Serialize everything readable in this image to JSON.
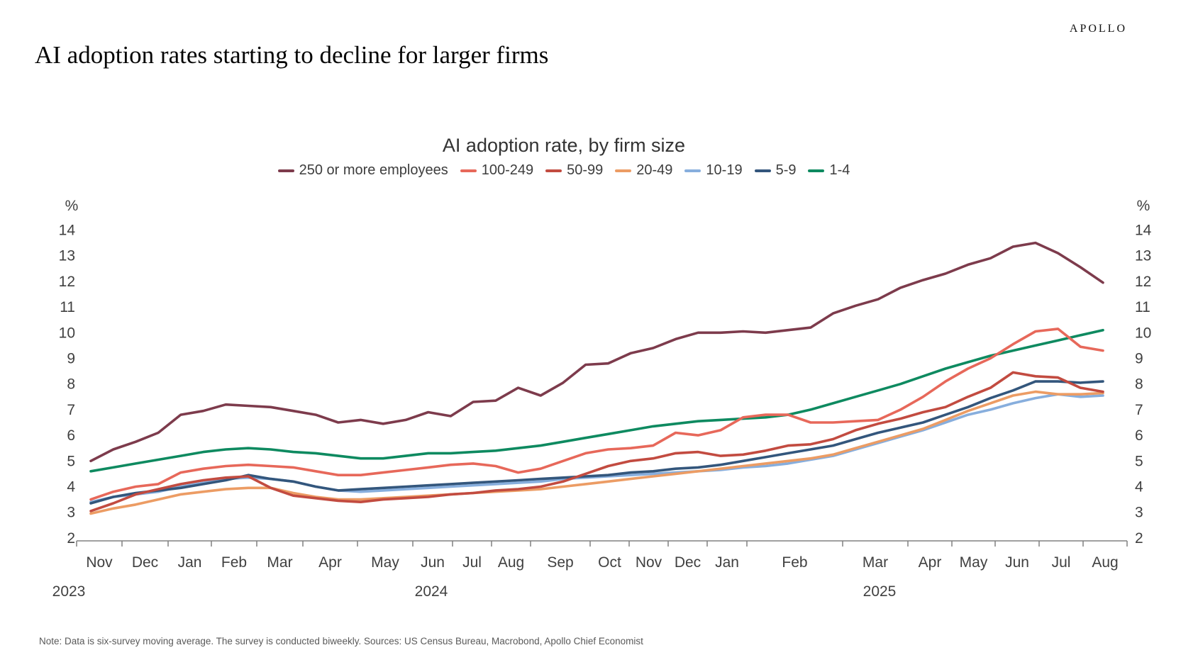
{
  "header": {
    "title": "AI adoption rates starting to decline for larger firms",
    "logo": "APOLLO"
  },
  "footer": {
    "note": "Note: Data is six-survey moving average. The survey is conducted biweekly. Sources: US Census Bureau, Macrobond, Apollo Chief Economist"
  },
  "chart_data": {
    "type": "line",
    "title": "AI adoption rate, by firm size",
    "y_unit_left": "%",
    "y_unit_right": "%",
    "ylim": [
      2,
      14
    ],
    "yticks": [
      14,
      13,
      12,
      11,
      10,
      9,
      8,
      7,
      6,
      5,
      4,
      3,
      2
    ],
    "grid": false,
    "legend_position": "top-center",
    "x_tick_labels": [
      "Nov",
      "Dec",
      "Jan",
      "Feb",
      "Mar",
      "Apr",
      "May",
      "Jun",
      "Jul",
      "Aug",
      "Sep",
      "Oct",
      "Nov",
      "Dec",
      "Jan",
      "Feb",
      "Mar",
      "Apr",
      "May",
      "Jun",
      "Jul",
      "Aug"
    ],
    "year_labels": [
      "2023",
      "2024",
      "2025"
    ],
    "x_period": "Biweekly survey points, mid-Nov 2023 through early-Aug 2025",
    "series": [
      {
        "name": "250 or more employees",
        "color": "#7D3B4C",
        "values": [
          5.0,
          5.45,
          5.75,
          6.1,
          6.8,
          6.95,
          7.2,
          7.15,
          7.1,
          6.95,
          6.8,
          6.5,
          6.6,
          6.45,
          6.6,
          6.9,
          6.75,
          7.3,
          7.35,
          7.85,
          7.55,
          8.05,
          8.75,
          8.8,
          9.2,
          9.4,
          9.75,
          10.0,
          10.0,
          10.05,
          10.0,
          10.1,
          10.2,
          10.75,
          11.05,
          11.3,
          11.75,
          12.05,
          12.3,
          12.65,
          12.9,
          13.35,
          13.5,
          13.1,
          12.55,
          11.95
        ]
      },
      {
        "name": "100-249",
        "color": "#E7685A",
        "values": [
          3.5,
          3.8,
          4.0,
          4.1,
          4.55,
          4.7,
          4.8,
          4.85,
          4.8,
          4.75,
          4.6,
          4.45,
          4.45,
          4.55,
          4.65,
          4.75,
          4.85,
          4.9,
          4.8,
          4.55,
          4.7,
          5.0,
          5.3,
          5.45,
          5.5,
          5.6,
          6.1,
          6.0,
          6.2,
          6.7,
          6.8,
          6.8,
          6.5,
          6.5,
          6.55,
          6.6,
          7.0,
          7.5,
          8.1,
          8.6,
          9.0,
          9.55,
          10.05,
          10.15,
          9.45,
          9.3
        ]
      },
      {
        "name": "50-99",
        "color": "#C24B40",
        "values": [
          3.05,
          3.35,
          3.7,
          3.9,
          4.1,
          4.25,
          4.35,
          4.4,
          3.95,
          3.65,
          3.55,
          3.45,
          3.4,
          3.5,
          3.55,
          3.6,
          3.7,
          3.75,
          3.85,
          3.9,
          4.0,
          4.2,
          4.5,
          4.8,
          5.0,
          5.1,
          5.3,
          5.35,
          5.2,
          5.25,
          5.4,
          5.6,
          5.65,
          5.85,
          6.2,
          6.45,
          6.65,
          6.9,
          7.1,
          7.5,
          7.85,
          8.45,
          8.3,
          8.25,
          7.85,
          7.7
        ]
      },
      {
        "name": "20-49",
        "color": "#EC9C64",
        "values": [
          2.95,
          3.15,
          3.3,
          3.5,
          3.7,
          3.8,
          3.9,
          3.95,
          3.95,
          3.75,
          3.6,
          3.5,
          3.5,
          3.55,
          3.6,
          3.65,
          3.7,
          3.75,
          3.8,
          3.85,
          3.9,
          4.0,
          4.1,
          4.2,
          4.3,
          4.4,
          4.5,
          4.6,
          4.7,
          4.8,
          4.9,
          5.0,
          5.1,
          5.25,
          5.5,
          5.75,
          6.0,
          6.25,
          6.6,
          6.95,
          7.25,
          7.55,
          7.7,
          7.6,
          7.6,
          7.65
        ]
      },
      {
        "name": "10-19",
        "color": "#87AEDD",
        "values": [
          3.4,
          3.6,
          3.7,
          3.8,
          4.0,
          4.15,
          4.3,
          4.35,
          4.3,
          4.2,
          4.0,
          3.85,
          3.8,
          3.85,
          3.9,
          3.95,
          4.0,
          4.05,
          4.1,
          4.15,
          4.2,
          4.3,
          4.35,
          4.4,
          4.45,
          4.5,
          4.55,
          4.6,
          4.65,
          4.75,
          4.8,
          4.9,
          5.05,
          5.2,
          5.45,
          5.7,
          5.95,
          6.2,
          6.5,
          6.8,
          7.0,
          7.25,
          7.45,
          7.6,
          7.5,
          7.55
        ]
      },
      {
        "name": "5-9",
        "color": "#33567C",
        "values": [
          3.35,
          3.6,
          3.75,
          3.85,
          3.95,
          4.1,
          4.25,
          4.45,
          4.3,
          4.2,
          4.0,
          3.85,
          3.9,
          3.95,
          4.0,
          4.05,
          4.1,
          4.15,
          4.2,
          4.25,
          4.3,
          4.35,
          4.4,
          4.45,
          4.55,
          4.6,
          4.7,
          4.75,
          4.85,
          5.0,
          5.15,
          5.3,
          5.45,
          5.6,
          5.85,
          6.1,
          6.3,
          6.5,
          6.8,
          7.1,
          7.45,
          7.75,
          8.1,
          8.1,
          8.05,
          8.1
        ]
      },
      {
        "name": "1-4",
        "color": "#0E8A60",
        "values": [
          4.6,
          4.75,
          4.9,
          5.05,
          5.2,
          5.35,
          5.45,
          5.5,
          5.45,
          5.35,
          5.3,
          5.2,
          5.1,
          5.1,
          5.2,
          5.3,
          5.3,
          5.35,
          5.4,
          5.5,
          5.6,
          5.75,
          5.9,
          6.05,
          6.2,
          6.35,
          6.45,
          6.55,
          6.6,
          6.65,
          6.7,
          6.8,
          7.0,
          7.25,
          7.5,
          7.75,
          8.0,
          8.3,
          8.6,
          8.85,
          9.1,
          9.3,
          9.5,
          9.7,
          9.9,
          10.1
        ]
      }
    ]
  }
}
